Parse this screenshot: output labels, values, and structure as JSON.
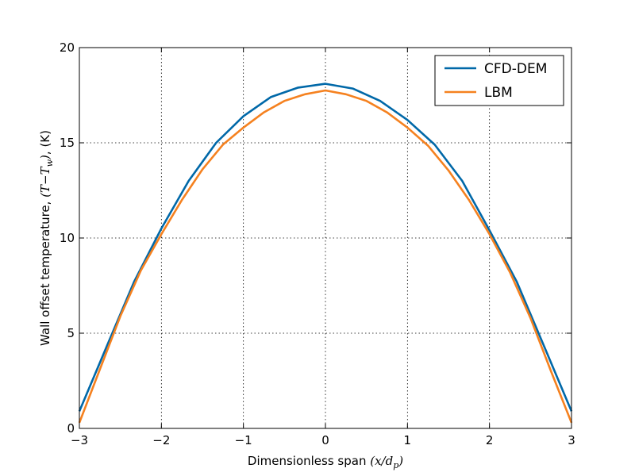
{
  "chart_data": {
    "type": "line",
    "xlabel_prefix": "Dimensionless span ",
    "xlabel_math": "(x/d",
    "xlabel_math_sub": "p",
    "xlabel_math_close": ")",
    "ylabel_prefix": "Wall offset temperature, ",
    "ylabel_math": "(T−T",
    "ylabel_math_sub": "w",
    "ylabel_math_close": ")",
    "ylabel_suffix": ", (K)",
    "xlim": [
      -3,
      3
    ],
    "ylim": [
      0,
      20
    ],
    "xticks": [
      -3,
      -2,
      -1,
      0,
      1,
      2,
      3
    ],
    "xtick_labels": [
      "−3",
      "−2",
      "−1",
      "0",
      "1",
      "2",
      "3"
    ],
    "yticks": [
      0,
      5,
      10,
      15,
      20
    ],
    "ytick_labels": [
      "0",
      "5",
      "10",
      "15",
      "20"
    ],
    "grid": true,
    "legend_position": "top-right",
    "series": [
      {
        "name": "CFD-DEM",
        "color": "#0068a8",
        "x": [
          -3,
          -2.667,
          -2.333,
          -2,
          -1.667,
          -1.333,
          -1,
          -0.667,
          -0.333,
          0,
          0.333,
          0.667,
          1,
          1.333,
          1.667,
          2,
          2.333,
          2.667,
          3
        ],
        "y": [
          0.9,
          4.3,
          7.7,
          10.5,
          13.0,
          15.0,
          16.4,
          17.4,
          17.9,
          18.1,
          17.85,
          17.2,
          16.2,
          14.9,
          13.0,
          10.4,
          7.7,
          4.3,
          0.9
        ]
      },
      {
        "name": "LBM",
        "color": "#f5811f",
        "x": [
          -3,
          -2.75,
          -2.5,
          -2.25,
          -2,
          -1.75,
          -1.5,
          -1.25,
          -1,
          -0.75,
          -0.5,
          -0.25,
          0,
          0.25,
          0.5,
          0.75,
          1,
          1.25,
          1.5,
          1.75,
          2,
          2.25,
          2.5,
          2.75,
          3
        ],
        "y": [
          0.3,
          3.1,
          5.9,
          8.3,
          10.2,
          12.0,
          13.6,
          14.9,
          15.8,
          16.6,
          17.2,
          17.55,
          17.75,
          17.55,
          17.2,
          16.6,
          15.8,
          14.85,
          13.55,
          12.0,
          10.2,
          8.2,
          5.8,
          3.0,
          0.3
        ]
      }
    ]
  }
}
